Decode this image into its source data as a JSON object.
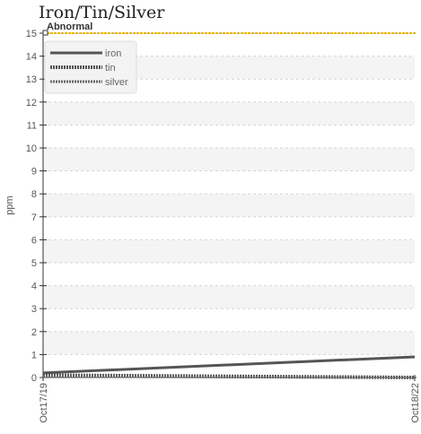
{
  "chart_data": {
    "type": "line",
    "title": "Iron/Tin/Silver",
    "xlabel": "",
    "ylabel": "ppm",
    "x": [
      "Oct17/19",
      "Oct18/22"
    ],
    "ylim": [
      0,
      15
    ],
    "yticks": [
      0,
      1,
      2,
      3,
      4,
      5,
      6,
      7,
      8,
      9,
      10,
      11,
      12,
      13,
      14,
      15
    ],
    "grid": true,
    "legend_position": "top-left",
    "series": [
      {
        "name": "iron",
        "values": [
          0.2,
          0.9
        ],
        "color": "#555555",
        "style": "solid"
      },
      {
        "name": "tin",
        "values": [
          0.1,
          0.0
        ],
        "color": "#555555",
        "style": "dotted"
      },
      {
        "name": "silver",
        "values": [
          0.05,
          0.0
        ],
        "color": "#666666",
        "style": "dashed"
      }
    ],
    "annotations": [
      {
        "label": "Abnormal",
        "y": 15,
        "color": "#e8b400"
      }
    ]
  }
}
